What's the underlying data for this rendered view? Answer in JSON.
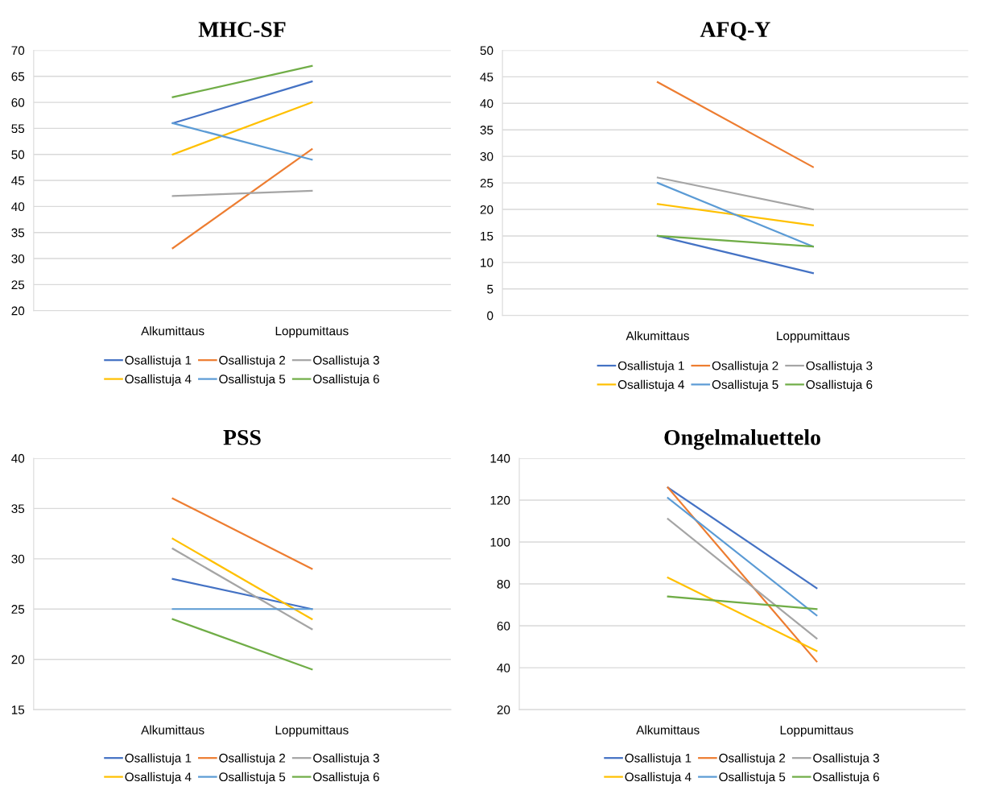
{
  "chart_data": [
    {
      "type": "line",
      "title": "MHC-SF",
      "categories": [
        "Alkumittaus",
        "Loppumittaus"
      ],
      "ylim": [
        20,
        70
      ],
      "yticks": [
        20,
        25,
        30,
        35,
        40,
        45,
        50,
        55,
        60,
        65,
        70
      ],
      "grid": "y",
      "legend": "bottom",
      "marker": "none",
      "line_style": "solid",
      "series": [
        {
          "name": "Osallistuja 1",
          "color": "#4472c4",
          "values": [
            56,
            64
          ]
        },
        {
          "name": "Osallistuja 2",
          "color": "#ed7d31",
          "values": [
            32,
            51
          ]
        },
        {
          "name": "Osallistuja 3",
          "color": "#a5a5a5",
          "values": [
            42,
            43
          ]
        },
        {
          "name": "Osallistuja 4",
          "color": "#ffc000",
          "values": [
            50,
            60
          ]
        },
        {
          "name": "Osallistuja 5",
          "color": "#5b9bd5",
          "values": [
            56,
            49
          ]
        },
        {
          "name": "Osallistuja 6",
          "color": "#70ad47",
          "values": [
            61,
            67
          ]
        }
      ]
    },
    {
      "type": "line",
      "title": "AFQ-Y",
      "categories": [
        "Alkumittaus",
        "Loppumittaus"
      ],
      "ylim": [
        0,
        50
      ],
      "yticks": [
        0,
        5,
        10,
        15,
        20,
        25,
        30,
        35,
        40,
        45,
        50
      ],
      "grid": "y",
      "legend": "bottom",
      "marker": "none",
      "line_style": "solid",
      "series": [
        {
          "name": "Osallistuja 1",
          "color": "#4472c4",
          "values": [
            15,
            8
          ]
        },
        {
          "name": "Osallistuja 2",
          "color": "#ed7d31",
          "values": [
            44,
            28
          ]
        },
        {
          "name": "Osallistuja 3",
          "color": "#a5a5a5",
          "values": [
            26,
            20
          ]
        },
        {
          "name": "Osallistuja 4",
          "color": "#ffc000",
          "values": [
            21,
            17
          ]
        },
        {
          "name": "Osallistuja 5",
          "color": "#5b9bd5",
          "values": [
            25,
            13
          ]
        },
        {
          "name": "Osallistuja 6",
          "color": "#70ad47",
          "values": [
            15,
            13
          ]
        }
      ]
    },
    {
      "type": "line",
      "title": "PSS",
      "categories": [
        "Alkumittaus",
        "Loppumittaus"
      ],
      "ylim": [
        15,
        40
      ],
      "yticks": [
        15,
        20,
        25,
        30,
        35,
        40
      ],
      "grid": "y",
      "legend": "bottom",
      "marker": "none",
      "line_style": "solid",
      "series": [
        {
          "name": "Osallistuja 1",
          "color": "#4472c4",
          "values": [
            28,
            25
          ]
        },
        {
          "name": "Osallistuja 2",
          "color": "#ed7d31",
          "values": [
            36,
            29
          ]
        },
        {
          "name": "Osallistuja 3",
          "color": "#a5a5a5",
          "values": [
            31,
            23
          ]
        },
        {
          "name": "Osallistuja 4",
          "color": "#ffc000",
          "values": [
            32,
            24
          ]
        },
        {
          "name": "Osallistuja 5",
          "color": "#5b9bd5",
          "values": [
            25,
            25
          ]
        },
        {
          "name": "Osallistuja 6",
          "color": "#70ad47",
          "values": [
            24,
            19
          ]
        }
      ]
    },
    {
      "type": "line",
      "title": "Ongelmaluettelo",
      "categories": [
        "Alkumittaus",
        "Loppumittaus"
      ],
      "ylim": [
        20,
        140
      ],
      "yticks": [
        20,
        40,
        60,
        80,
        100,
        120,
        140
      ],
      "grid": "y",
      "legend": "bottom",
      "marker": "none",
      "line_style": "solid",
      "series": [
        {
          "name": "Osallistuja 1",
          "color": "#4472c4",
          "values": [
            126,
            78
          ]
        },
        {
          "name": "Osallistuja 2",
          "color": "#ed7d31",
          "values": [
            126,
            43
          ]
        },
        {
          "name": "Osallistuja 3",
          "color": "#a5a5a5",
          "values": [
            111,
            54
          ]
        },
        {
          "name": "Osallistuja 4",
          "color": "#ffc000",
          "values": [
            83,
            48
          ]
        },
        {
          "name": "Osallistuja 5",
          "color": "#5b9bd5",
          "values": [
            121,
            65
          ]
        },
        {
          "name": "Osallistuja 6",
          "color": "#70ad47",
          "values": [
            74,
            68
          ]
        }
      ]
    }
  ]
}
